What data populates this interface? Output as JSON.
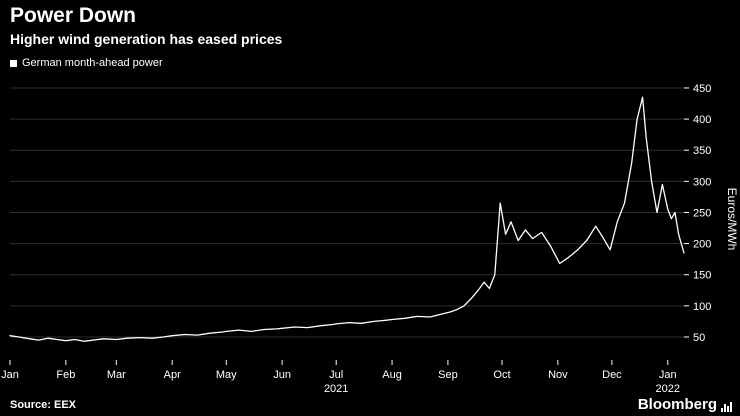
{
  "header": {
    "title": "Power Down",
    "subtitle": "Higher wind generation has eased prices"
  },
  "legend": {
    "label": "German month-ahead power"
  },
  "footer": {
    "source": "Source: EEX",
    "brand": "Bloomberg"
  },
  "chart_data": {
    "type": "line",
    "title": "Power Down",
    "subtitle": "Higher wind generation has eased prices",
    "series_name": "German month-ahead power",
    "ylabel": "Euros/MWh",
    "background": "#000000",
    "line_color": "#ffffff",
    "grid": true,
    "grid_color": "#2e2e2e",
    "legend_position": "top-left",
    "y_ticks": [
      50,
      100,
      150,
      200,
      250,
      300,
      350,
      400,
      450
    ],
    "y_range": [
      13,
      466
    ],
    "x_range_days": [
      0,
      374
    ],
    "x_tick_labels": [
      "Jan",
      "Feb",
      "Mar",
      "Apr",
      "May",
      "Jun",
      "Jul",
      "Aug",
      "Sep",
      "Oct",
      "Nov",
      "Dec",
      "Jan"
    ],
    "x_tick_days": [
      0,
      31,
      59,
      90,
      120,
      151,
      181,
      212,
      243,
      273,
      304,
      334,
      365
    ],
    "x_year_labels": [
      {
        "label": "2021",
        "day": 181
      },
      {
        "label": "2022",
        "day": 365
      }
    ],
    "points": [
      [
        0,
        52
      ],
      [
        5,
        50
      ],
      [
        11,
        47
      ],
      [
        16,
        45
      ],
      [
        21,
        48
      ],
      [
        26,
        46
      ],
      [
        31,
        44
      ],
      [
        36,
        46
      ],
      [
        41,
        43
      ],
      [
        46,
        45
      ],
      [
        52,
        47
      ],
      [
        59,
        46
      ],
      [
        65,
        48
      ],
      [
        72,
        49
      ],
      [
        79,
        48
      ],
      [
        85,
        50
      ],
      [
        90,
        52
      ],
      [
        97,
        54
      ],
      [
        104,
        53
      ],
      [
        111,
        56
      ],
      [
        118,
        58
      ],
      [
        120,
        59
      ],
      [
        127,
        61
      ],
      [
        134,
        59
      ],
      [
        141,
        62
      ],
      [
        148,
        63
      ],
      [
        151,
        64
      ],
      [
        158,
        66
      ],
      [
        165,
        65
      ],
      [
        172,
        68
      ],
      [
        179,
        70
      ],
      [
        181,
        71
      ],
      [
        188,
        73
      ],
      [
        195,
        72
      ],
      [
        202,
        75
      ],
      [
        209,
        77
      ],
      [
        212,
        78
      ],
      [
        219,
        80
      ],
      [
        226,
        83
      ],
      [
        233,
        82
      ],
      [
        240,
        87
      ],
      [
        244,
        90
      ],
      [
        248,
        94
      ],
      [
        252,
        100
      ],
      [
        256,
        112
      ],
      [
        260,
        126
      ],
      [
        263,
        138
      ],
      [
        266,
        128
      ],
      [
        269,
        150
      ],
      [
        272,
        265
      ],
      [
        275,
        215
      ],
      [
        278,
        235
      ],
      [
        282,
        205
      ],
      [
        286,
        222
      ],
      [
        290,
        208
      ],
      [
        295,
        218
      ],
      [
        300,
        196
      ],
      [
        305,
        168
      ],
      [
        310,
        178
      ],
      [
        315,
        190
      ],
      [
        320,
        205
      ],
      [
        325,
        228
      ],
      [
        329,
        210
      ],
      [
        333,
        190
      ],
      [
        337,
        235
      ],
      [
        341,
        265
      ],
      [
        345,
        330
      ],
      [
        348,
        400
      ],
      [
        351,
        435
      ],
      [
        353,
        370
      ],
      [
        356,
        300
      ],
      [
        359,
        250
      ],
      [
        362,
        295
      ],
      [
        365,
        255
      ],
      [
        367,
        240
      ],
      [
        369,
        250
      ],
      [
        371,
        215
      ],
      [
        373,
        195
      ],
      [
        374,
        185
      ]
    ]
  }
}
